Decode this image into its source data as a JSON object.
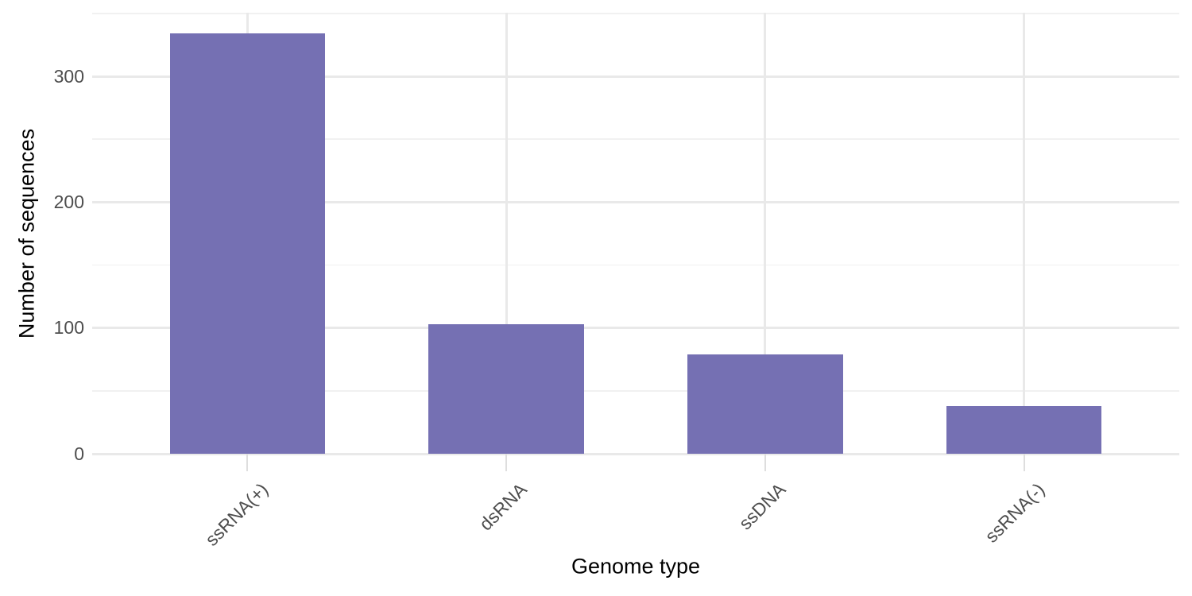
{
  "chart_data": {
    "type": "bar",
    "title": "",
    "xlabel": "Genome type",
    "ylabel": "Number of sequences",
    "categories": [
      "ssRNA(+)",
      "dsRNA",
      "ssDNA",
      "ssRNA(-)"
    ],
    "values": [
      334,
      103,
      79,
      38
    ],
    "ylim": [
      0,
      350
    ],
    "yticks": [
      0,
      100,
      200,
      300
    ],
    "yminorticks": [
      50,
      150,
      250,
      350
    ],
    "grid": "horizontal major+minor, vertical major at category centers",
    "legend": "none",
    "colors": {
      "bar": "#7570b3",
      "grid_major": "#e9e9e9",
      "grid_minor": "#f1f1f1",
      "tick_mark": "#dedede",
      "tick_label": "#4d4d4d",
      "axis_title": "#000000",
      "background": "#ffffff"
    }
  }
}
